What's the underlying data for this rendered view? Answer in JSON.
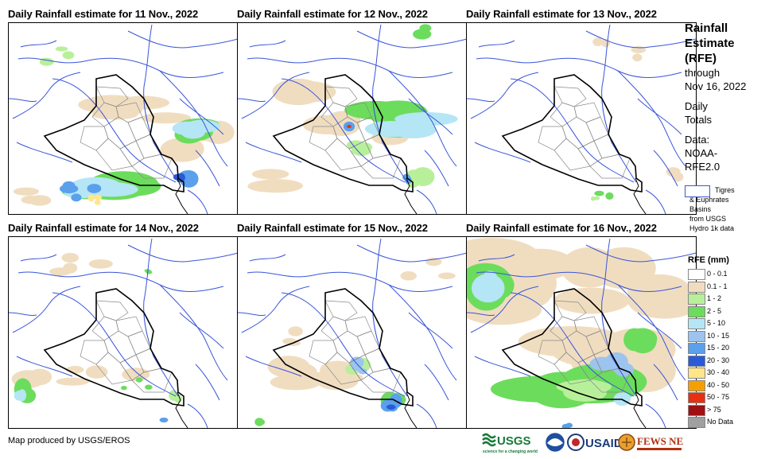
{
  "panels": [
    {
      "title": "Daily Rainfall estimate for 11 Nov., 2022"
    },
    {
      "title": "Daily Rainfall estimate for 12 Nov., 2022"
    },
    {
      "title": "Daily Rainfall estimate for 13 Nov., 2022"
    },
    {
      "title": "Daily Rainfall estimate for 14 Nov., 2022"
    },
    {
      "title": "Daily Rainfall estimate for 15 Nov., 2022"
    },
    {
      "title": "Daily Rainfall estimate for 16 Nov., 2022"
    }
  ],
  "legend": {
    "title_lines": [
      "Rainfall",
      "Estimate",
      "(RFE)"
    ],
    "through": "through",
    "date": "Nov 16, 2022",
    "daily": "Daily",
    "totals": "Totals",
    "data_label": "Data:",
    "source_1": "NOAA-",
    "source_2": "RFE2.0",
    "basin_lines": [
      "Tigres",
      "& Euphrates",
      "Basins",
      "from USGS",
      "Hydro 1k data"
    ],
    "rfe_heading": "RFE (mm)",
    "classes": [
      {
        "label": "0 - 0.1",
        "color": "#ffffff"
      },
      {
        "label": "0.1 - 1",
        "color": "#f0ddc0"
      },
      {
        "label": "1 - 2",
        "color": "#b8f09a"
      },
      {
        "label": "2 - 5",
        "color": "#6cdc5c"
      },
      {
        "label": "5 - 10",
        "color": "#b4e6f5"
      },
      {
        "label": "10 - 15",
        "color": "#9cc4ee"
      },
      {
        "label": "15 - 20",
        "color": "#5aa0ec"
      },
      {
        "label": "20 - 30",
        "color": "#2a5ad8"
      },
      {
        "label": "30 - 40",
        "color": "#ffe68a"
      },
      {
        "label": "40 - 50",
        "color": "#f5a000"
      },
      {
        "label": "50 - 75",
        "color": "#e83010"
      },
      {
        "label": "> 75",
        "color": "#a01010"
      },
      {
        "label": "No Data",
        "color": "#a0a0a0"
      }
    ]
  },
  "credit": "Map produced by USGS/EROS",
  "logos": {
    "usgs": "USGS",
    "usaid": "USAID",
    "fews": "FEWS NET"
  },
  "map_colors": {
    "border": "#000000",
    "rivers": "#3a55d9",
    "provinces": "#8a8a8a"
  }
}
